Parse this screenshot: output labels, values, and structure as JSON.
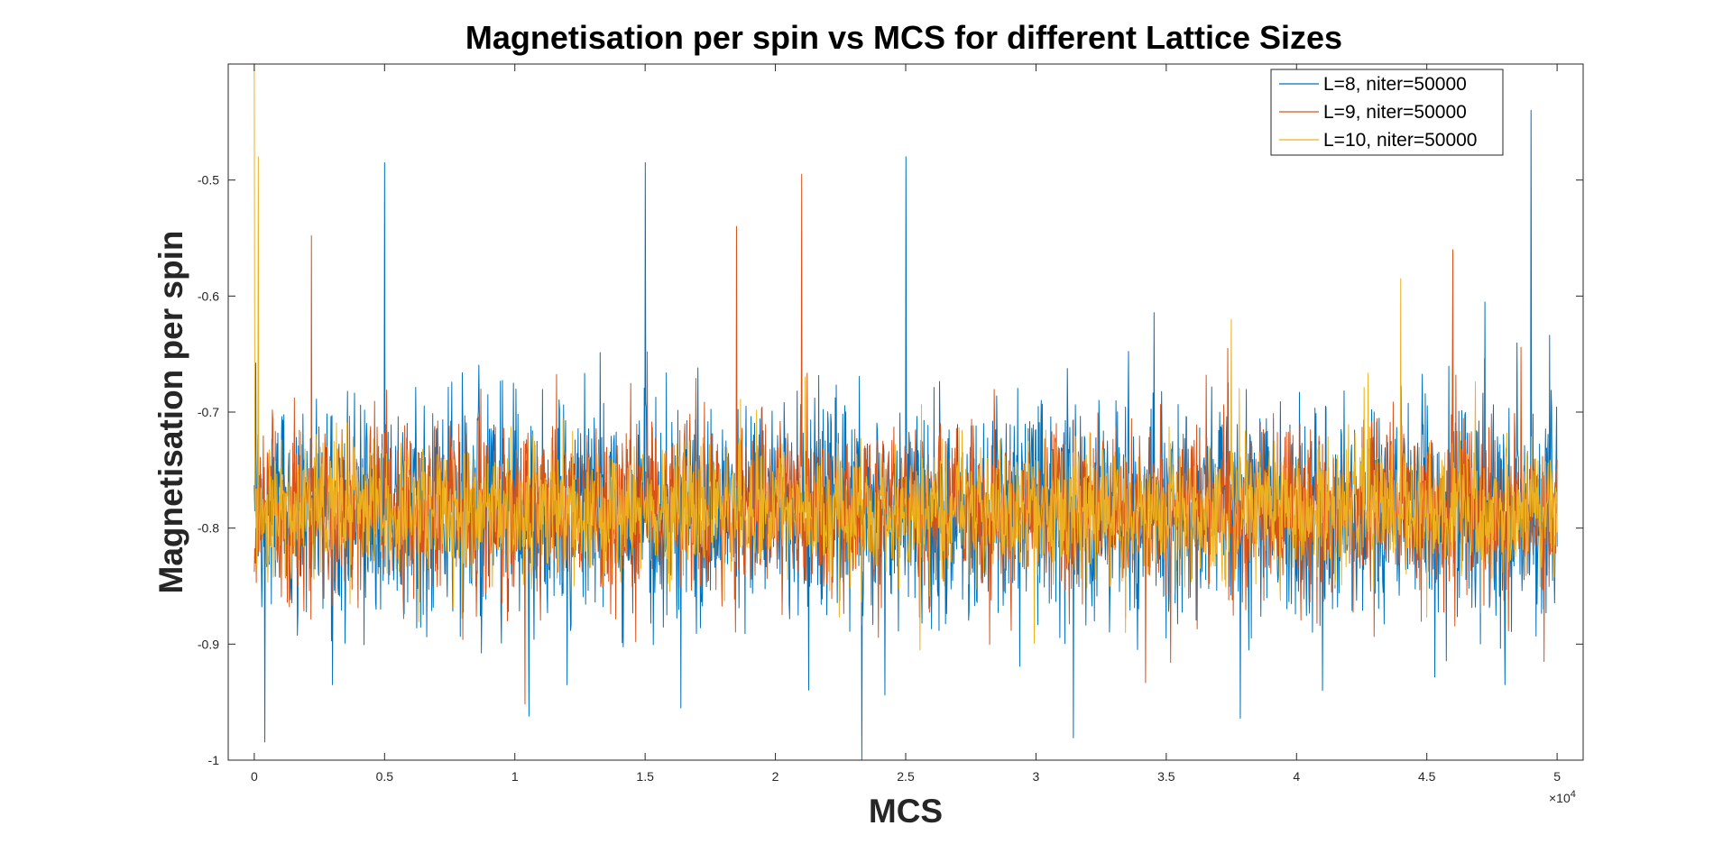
{
  "chart_data": {
    "type": "line",
    "title": "Magnetisation per spin vs MCS for different Lattice Sizes",
    "xlabel": "MCS",
    "ylabel": "Magnetisation per spin",
    "xlim": [
      -1000,
      51000
    ],
    "ylim": [
      -1.0,
      -0.4
    ],
    "x_ticks": [
      0,
      5000,
      10000,
      15000,
      20000,
      25000,
      30000,
      35000,
      40000,
      45000,
      50000
    ],
    "x_tick_labels": [
      "0",
      "0.5",
      "1",
      "1.5",
      "2",
      "2.5",
      "3",
      "3.5",
      "4",
      "4.5",
      "5"
    ],
    "x_exponent": {
      "base": "×10",
      "power": "4"
    },
    "y_ticks": [
      -1.0,
      -0.9,
      -0.8,
      -0.7,
      -0.6,
      -0.5
    ],
    "y_tick_labels": [
      "-1",
      "-0.9",
      "-0.8",
      "-0.7",
      "-0.6",
      "-0.5"
    ],
    "grid": false,
    "legend_position": "top-right",
    "series": [
      {
        "name": "L=8, niter=50000",
        "color": "#0072BD",
        "mean": -0.785,
        "spread": 0.045,
        "spikes": [
          [
            5000,
            -0.485
          ],
          [
            15000,
            -0.485
          ],
          [
            25000,
            -0.48
          ],
          [
            49000,
            -0.44
          ],
          [
            41000,
            -0.94
          ],
          [
            3000,
            -0.935
          ],
          [
            48000,
            -0.935
          ],
          [
            12000,
            -0.935
          ]
        ]
      },
      {
        "name": "L=9, niter=50000",
        "color": "#D95319",
        "mean": -0.785,
        "spread": 0.035,
        "spikes": [
          [
            21000,
            -0.495
          ],
          [
            18500,
            -0.54
          ],
          [
            2200,
            -0.548
          ],
          [
            46000,
            -0.56
          ],
          [
            49500,
            -0.915
          ]
        ]
      },
      {
        "name": "L=10, niter=50000",
        "color": "#EDB120",
        "mean": -0.785,
        "spread": 0.027,
        "spikes": [
          [
            0,
            -0.4
          ],
          [
            150,
            -0.48
          ],
          [
            37500,
            -0.62
          ],
          [
            44000,
            -0.585
          ]
        ]
      }
    ]
  }
}
